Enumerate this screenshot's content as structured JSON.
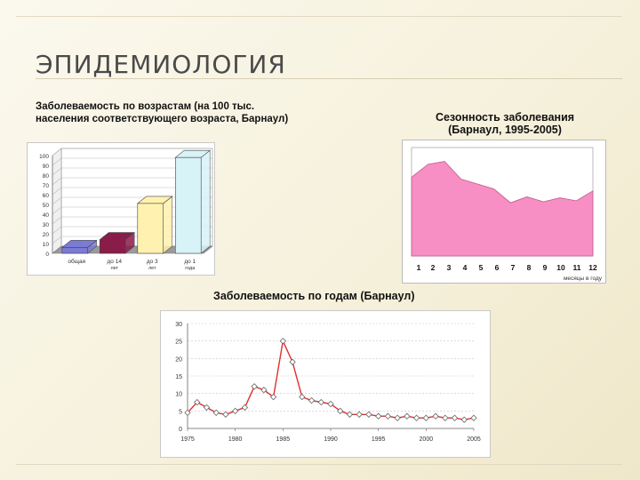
{
  "slide": {
    "title": "ЭПИДЕМИОЛОГИЯ"
  },
  "captions": {
    "age": "Заболеваемость по возрастам (на 100 тыс. населения соответствующего возраста, Барнаул)",
    "season": "Сезонность заболевания (Барнаул, 1995-2005)",
    "years": "Заболеваемость по годам (Барнаул)"
  },
  "colors": {
    "accent": "#c9a35a",
    "area_fill": "#f78fc4",
    "line": "#e03030"
  },
  "chart_data": [
    {
      "type": "bar",
      "title": "Заболеваемость по возрастам (на 100 тыс. населения соответствующего возраста, Барнаул)",
      "categories": [
        "общая",
        "до 14 лет",
        "до 3 лет",
        "до 1 года"
      ],
      "values": [
        6,
        14,
        51,
        98
      ],
      "colors": [
        "#7b7bd6",
        "#8a1c4a",
        "#fff2b0",
        "#d8f3f8"
      ],
      "yticks": [
        "0",
        "10",
        "20",
        "30",
        "40",
        "50",
        "60",
        "70",
        "80",
        "90",
        "100"
      ],
      "ylim": [
        0,
        100
      ],
      "grid": true
    },
    {
      "type": "area",
      "title": "Сезонность заболевания (Барнаул, 1995-2005)",
      "x": [
        "1",
        "2",
        "3",
        "4",
        "5",
        "6",
        "7",
        "8",
        "9",
        "10",
        "11",
        "12"
      ],
      "values": [
        80,
        93,
        96,
        78,
        73,
        68,
        54,
        60,
        55,
        59,
        56,
        66
      ],
      "xlabel": "месяцы в году",
      "ylim": [
        0,
        110
      ]
    },
    {
      "type": "line",
      "title": "Заболеваемость по годам (Барнаул)",
      "xticks": [
        "1975",
        "1980",
        "1985",
        "1990",
        "1995",
        "2000",
        "2005"
      ],
      "yticks": [
        "0",
        "5",
        "10",
        "15",
        "20",
        "25",
        "30"
      ],
      "ylim": [
        0,
        30
      ],
      "x": [
        1975,
        1976,
        1977,
        1978,
        1979,
        1980,
        1981,
        1982,
        1983,
        1984,
        1985,
        1986,
        1987,
        1988,
        1989,
        1990,
        1991,
        1992,
        1993,
        1994,
        1995,
        1996,
        1997,
        1998,
        1999,
        2000,
        2001,
        2002,
        2003,
        2004,
        2005
      ],
      "values": [
        4.5,
        7.5,
        6,
        4.5,
        4,
        5,
        6,
        12,
        11,
        9,
        25,
        19,
        9,
        8,
        7.5,
        7,
        5,
        4,
        4,
        4,
        3.5,
        3.5,
        3,
        3.5,
        3,
        3,
        3.5,
        3,
        3,
        2.5,
        3
      ]
    }
  ]
}
